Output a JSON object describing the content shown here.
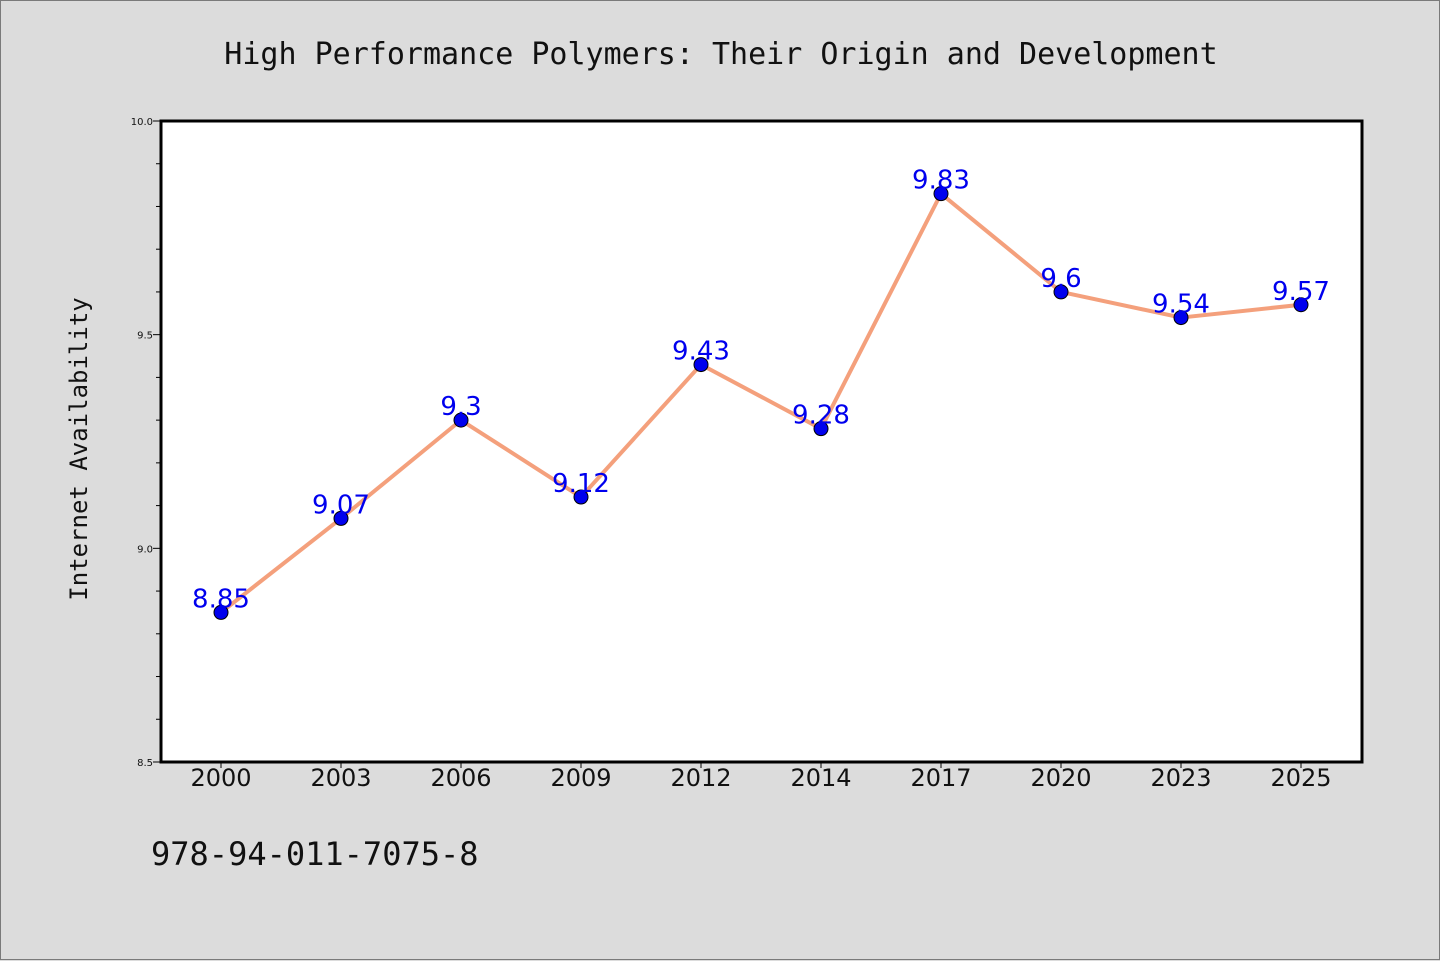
{
  "chart_data": {
    "type": "line",
    "title": "High Performance Polymers: Their Origin and Development",
    "xlabel": "",
    "ylabel": "Internet Availability",
    "categories": [
      "2000",
      "2003",
      "2006",
      "2009",
      "2012",
      "2014",
      "2017",
      "2020",
      "2023",
      "2025"
    ],
    "series": [
      {
        "values": [
          8.85,
          9.07,
          9.3,
          9.12,
          9.43,
          9.28,
          9.83,
          9.6,
          9.54,
          9.57
        ],
        "data_labels": [
          "8.85",
          "9.07",
          "9.3",
          "9.12",
          "9.43",
          "9.28",
          "9.83",
          "9.6",
          "9.54",
          "9.57"
        ],
        "line_color": "#f4a07c",
        "marker_color": "#0000ee"
      }
    ],
    "ylim": [
      8.5,
      10.0
    ],
    "yticks": [
      "8.5",
      "9.0",
      "9.5",
      "10.0"
    ],
    "grid": false,
    "legend": "none"
  },
  "footer_text": "978-94-011-7075-8",
  "colors": {
    "background": "#dcdcdc",
    "plot_background": "#ffffff",
    "line": "#f4a07c",
    "marker": "#0000ee",
    "data_label": "#0000ee"
  }
}
